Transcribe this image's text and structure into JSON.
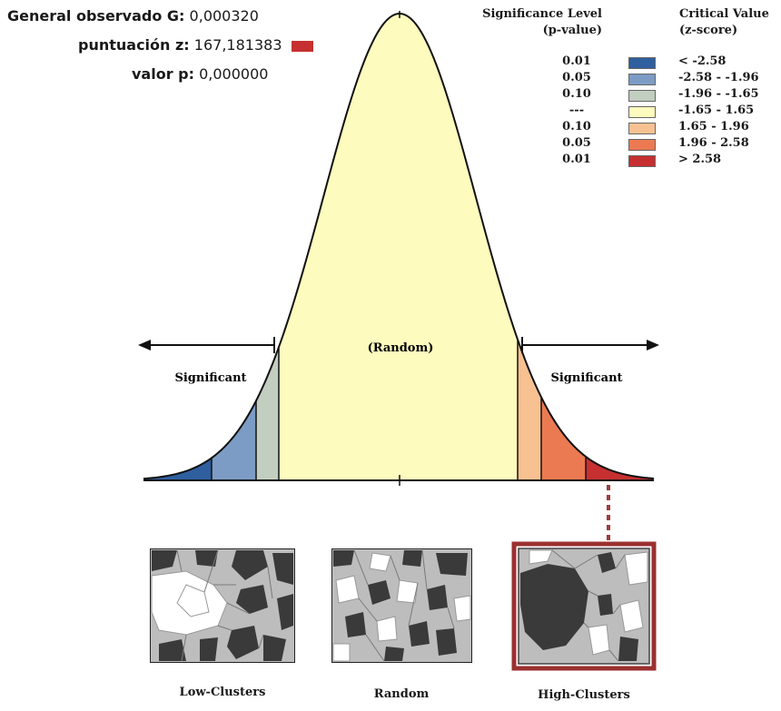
{
  "stats": {
    "g_label": "General observado G:",
    "g_value": "0,000320",
    "z_label": "puntuación z:",
    "z_value": "167,181383",
    "p_label": "valor p:",
    "p_value": "0,000000"
  },
  "legend": {
    "sig_header_1": "Significance Level",
    "sig_header_2": "(p-value)",
    "crit_header_1": "Critical Value",
    "crit_header_2": "(z-score)",
    "rows": [
      {
        "p": "0.01",
        "z": "< -2.58",
        "color": "#2f5f9f"
      },
      {
        "p": "0.05",
        "z": "-2.58 - -1.96",
        "color": "#7d9cc5"
      },
      {
        "p": "0.10",
        "z": "-1.96 - -1.65",
        "color": "#c2cec0"
      },
      {
        "p": "---",
        "z": "-1.65 - 1.65",
        "color": "#fdfbbd"
      },
      {
        "p": "0.10",
        "z": "1.65 - 1.96",
        "color": "#f7c191"
      },
      {
        "p": "0.05",
        "z": "1.96 - 2.58",
        "color": "#eb7a52"
      },
      {
        "p": "0.01",
        "z": "> 2.58",
        "color": "#c63030"
      }
    ]
  },
  "curve": {
    "random_label": "(Random)",
    "significant_left": "Significant",
    "significant_right": "Significant"
  },
  "maps": {
    "low": "Low-Clusters",
    "random": "Random",
    "high": "High-Clusters"
  },
  "colors": {
    "z_swatch": "#c63030",
    "highlight_frame": "#9b3030",
    "dark_polygon": "#3a3a3a",
    "gray_polygon": "#bdbdbd"
  }
}
